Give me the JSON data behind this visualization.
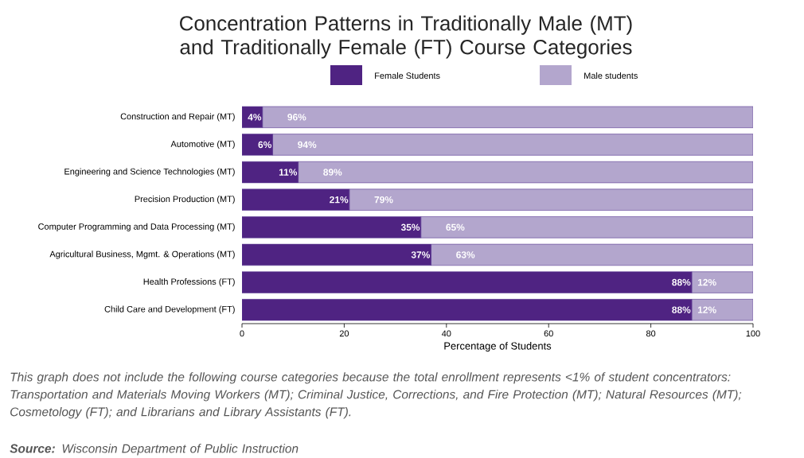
{
  "chart_data": {
    "type": "bar",
    "orientation": "horizontal",
    "stacked": true,
    "title": "Concentration Patterns in Traditionally Male (MT) and Traditionally Female (FT) Course Categories",
    "xlabel": "Percentage of Students",
    "categories": [
      "Construction and Repair (MT)",
      "Automotive (MT)",
      "Engineering and Science Technologies (MT)",
      "Precision Production (MT)",
      "Computer Programming and Data Processing (MT)",
      "Agricultural Business, Mgmt. & Operations (MT)",
      "Health Professions (FT)",
      "Child Care and Development (FT)"
    ],
    "series": [
      {
        "name": "Female Students",
        "color": "#4f2382",
        "values": [
          4,
          6,
          11,
          21,
          35,
          37,
          88,
          88
        ],
        "value_labels": [
          "4%",
          "6%",
          "11%",
          "21%",
          "35%",
          "37%",
          "88%",
          "88%"
        ]
      },
      {
        "name": "Male students",
        "color": "#b3a6cd",
        "values": [
          96,
          94,
          89,
          79,
          65,
          63,
          12,
          12
        ],
        "value_labels": [
          "96%",
          "94%",
          "89%",
          "79%",
          "65%",
          "63%",
          "12%",
          "12%"
        ]
      }
    ],
    "xlim": [
      0,
      100
    ],
    "xticks": [
      0,
      20,
      40,
      60,
      80,
      100
    ],
    "legend": "top",
    "grid": false,
    "annotations": [
      "This graph does not include the following course categories because the total enrollment represents <1% of student concentrators: Transportation and Materials Moving Workers (MT); Criminal Justice, Corrections, and Fire Protection (MT); Natural Resources (MT); Cosmetology (FT); and Librarians and Library Assistants (FT).",
      "**Source:** Wisconsin Department of Public Instruction"
    ]
  }
}
